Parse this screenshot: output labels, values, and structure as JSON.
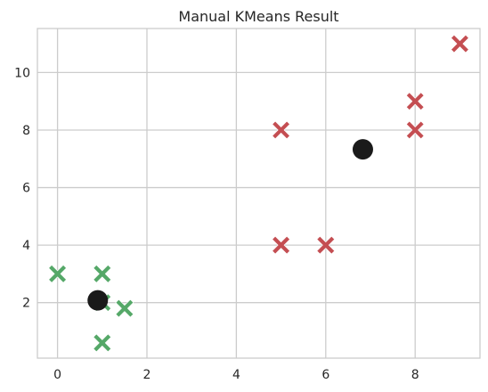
{
  "chart_data": {
    "type": "scatter",
    "title": "Manual KMeans Result",
    "xlabel": "",
    "ylabel": "",
    "xlim": [
      -0.45,
      9.45
    ],
    "ylim": [
      0.07,
      11.53
    ],
    "x_ticks": [
      0,
      2,
      4,
      6,
      8
    ],
    "y_ticks": [
      2,
      4,
      6,
      8,
      10
    ],
    "grid": true,
    "series": [
      {
        "marker": "X",
        "color": "#c44e52",
        "points": [
          [
            5,
            8
          ],
          [
            5,
            4
          ],
          [
            6,
            4
          ],
          [
            8,
            9
          ],
          [
            8,
            8
          ],
          [
            9,
            11
          ]
        ]
      },
      {
        "marker": "X",
        "color": "#55a868",
        "points": [
          [
            0,
            3
          ],
          [
            1,
            3
          ],
          [
            1,
            2
          ],
          [
            1.5,
            1.8
          ],
          [
            1,
            0.6
          ]
        ]
      },
      {
        "marker": "circle",
        "color": "#1a1a1a",
        "points": [
          [
            0.9,
            2.08
          ],
          [
            6.83,
            7.33
          ]
        ]
      }
    ]
  }
}
